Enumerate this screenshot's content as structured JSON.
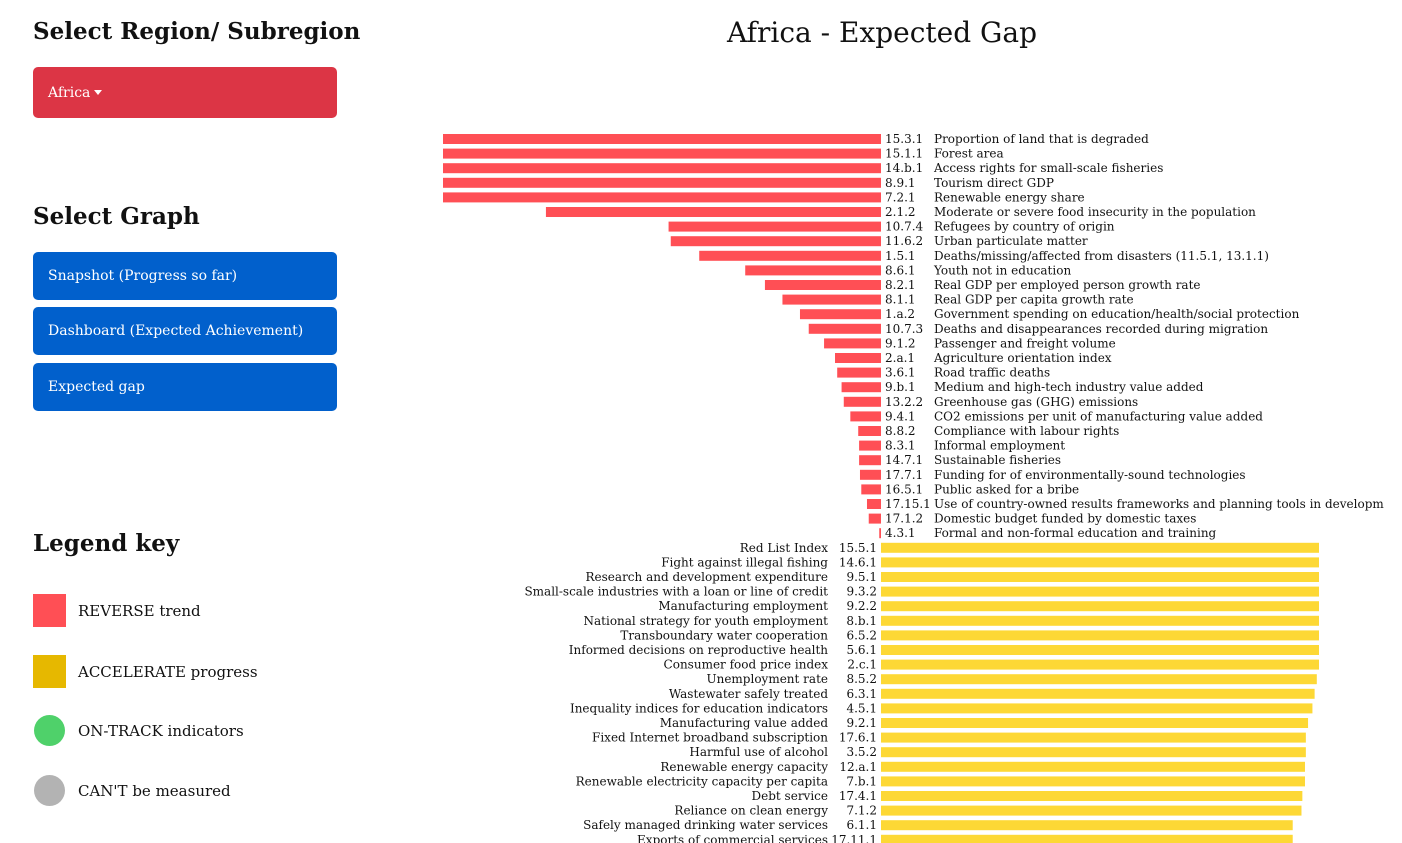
{
  "sidebar": {
    "region_heading": "Select Region/ Subregion",
    "region_selected": "Africa",
    "graph_heading": "Select Graph",
    "graph_buttons": [
      "Snapshot (Progress so far)",
      "Dashboard (Expected Achievement)",
      "Expected gap"
    ],
    "legend_heading": "Legend key",
    "legend": [
      {
        "label": "REVERSE trend",
        "color": "#ff4f55",
        "shape": "square"
      },
      {
        "label": "ACCELERATE progress",
        "color": "#e6b800",
        "shape": "square"
      },
      {
        "label": "ON-TRACK indicators",
        "color": "#4fd16a",
        "shape": "circle"
      },
      {
        "label": "CAN'T be measured",
        "color": "#b3b3b3",
        "shape": "circle"
      }
    ]
  },
  "colors": {
    "reverse": "#ff4f55",
    "accelerate": "#fdd835",
    "brand_red": "#dc3545",
    "brand_blue": "#0160cc"
  },
  "chart_title": "Africa - Expected Gap",
  "chart_data": {
    "type": "bar",
    "orientation": "horizontal-diverging",
    "xlim": [
      -1,
      1
    ],
    "reverse": [
      {
        "code": "15.3.1",
        "label": "Proportion of land that is degraded",
        "value": -1.0
      },
      {
        "code": "15.1.1",
        "label": "Forest area",
        "value": -1.0
      },
      {
        "code": "14.b.1",
        "label": "Access rights for small-scale fisheries",
        "value": -1.0
      },
      {
        "code": "8.9.1",
        "label": "Tourism direct GDP",
        "value": -1.0
      },
      {
        "code": "7.2.1",
        "label": "Renewable energy share",
        "value": -1.0
      },
      {
        "code": "2.1.2",
        "label": "Moderate or severe food insecurity in the population",
        "value": -0.765
      },
      {
        "code": "10.7.4",
        "label": "Refugees by country of origin",
        "value": -0.485
      },
      {
        "code": "11.6.2",
        "label": "Urban particulate matter",
        "value": -0.48
      },
      {
        "code": "1.5.1",
        "label": "Deaths/missing/affected from disasters (11.5.1, 13.1.1)",
        "value": -0.415
      },
      {
        "code": "8.6.1",
        "label": "Youth not in education",
        "value": -0.31
      },
      {
        "code": "8.2.1",
        "label": "Real GDP per employed person growth rate",
        "value": -0.265
      },
      {
        "code": "8.1.1",
        "label": "Real GDP per capita growth rate",
        "value": -0.225
      },
      {
        "code": "1.a.2",
        "label": "Government spending on education/health/social protection",
        "value": -0.185
      },
      {
        "code": "10.7.3",
        "label": "Deaths and disappearances recorded during migration",
        "value": -0.165
      },
      {
        "code": "9.1.2",
        "label": "Passenger and freight volume",
        "value": -0.13
      },
      {
        "code": "2.a.1",
        "label": "Agriculture orientation index",
        "value": -0.105
      },
      {
        "code": "3.6.1",
        "label": "Road traffic deaths",
        "value": -0.1
      },
      {
        "code": "9.b.1",
        "label": "Medium and high-tech industry value added",
        "value": -0.09
      },
      {
        "code": "13.2.2",
        "label": "Greenhouse gas (GHG) emissions",
        "value": -0.085
      },
      {
        "code": "9.4.1",
        "label": "CO2 emissions per unit of manufacturing value added",
        "value": -0.07
      },
      {
        "code": "8.8.2",
        "label": "Compliance with labour rights",
        "value": -0.052
      },
      {
        "code": "8.3.1",
        "label": "Informal employment",
        "value": -0.05
      },
      {
        "code": "14.7.1",
        "label": "Sustainable fisheries",
        "value": -0.05
      },
      {
        "code": "17.7.1",
        "label": "Funding for of environmentally-sound technologies",
        "value": -0.048
      },
      {
        "code": "16.5.1",
        "label": "Public asked for a bribe",
        "value": -0.045
      },
      {
        "code": "17.15.1",
        "label": "Use of country-owned results frameworks and planning tools in development coope",
        "value": -0.032
      },
      {
        "code": "17.1.2",
        "label": "Domestic budget funded by domestic taxes",
        "value": -0.028
      },
      {
        "code": "4.3.1",
        "label": "Formal and non-formal education and training",
        "value": -0.004
      }
    ],
    "accelerate": [
      {
        "code": "15.5.1",
        "label": "Red List Index",
        "value": 1.0
      },
      {
        "code": "14.6.1",
        "label": "Fight against illegal fishing",
        "value": 1.0
      },
      {
        "code": "9.5.1",
        "label": "Research and development expenditure",
        "value": 1.0
      },
      {
        "code": "9.3.2",
        "label": "Small-scale industries with a loan or line of credit",
        "value": 1.0
      },
      {
        "code": "9.2.2",
        "label": "Manufacturing employment",
        "value": 1.0
      },
      {
        "code": "8.b.1",
        "label": "National strategy for youth employment",
        "value": 1.0
      },
      {
        "code": "6.5.2",
        "label": "Transboundary water cooperation",
        "value": 1.0
      },
      {
        "code": "5.6.1",
        "label": "Informed decisions on reproductive health",
        "value": 1.0
      },
      {
        "code": "2.c.1",
        "label": "Consumer food price index",
        "value": 1.0
      },
      {
        "code": "8.5.2",
        "label": "Unemployment rate",
        "value": 0.995
      },
      {
        "code": "6.3.1",
        "label": "Wastewater safely treated",
        "value": 0.99
      },
      {
        "code": "4.5.1",
        "label": "Inequality indices for education indicators",
        "value": 0.985
      },
      {
        "code": "9.2.1",
        "label": "Manufacturing value added",
        "value": 0.975
      },
      {
        "code": "17.6.1",
        "label": "Fixed Internet broadband subscription",
        "value": 0.97
      },
      {
        "code": "3.5.2",
        "label": "Harmful use of alcohol",
        "value": 0.97
      },
      {
        "code": "12.a.1",
        "label": "Renewable energy capacity",
        "value": 0.968
      },
      {
        "code": "7.b.1",
        "label": "Renewable electricity capacity per capita",
        "value": 0.968
      },
      {
        "code": "17.4.1",
        "label": "Debt service",
        "value": 0.962
      },
      {
        "code": "7.1.2",
        "label": "Reliance on clean energy",
        "value": 0.96
      },
      {
        "code": "6.1.1",
        "label": "Safely managed drinking water services",
        "value": 0.94
      },
      {
        "code": "17.11.1",
        "label": "Exports of commercial services",
        "value": 0.94
      }
    ]
  }
}
